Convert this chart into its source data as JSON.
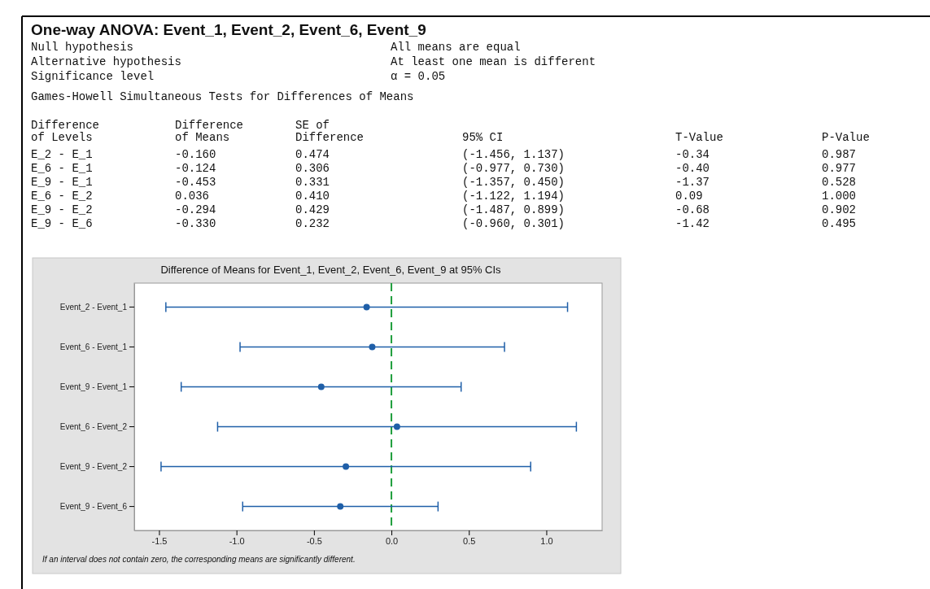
{
  "chart_data": {
    "type": "scatter",
    "orientation": "horizontal",
    "title": "Difference of Means for Event_1, Event_2, Event_6, Event_9 at 95% CIs",
    "categories": [
      "Event_2 - Event_1",
      "Event_6 - Event_1",
      "Event_9 - Event_1",
      "Event_6 - Event_2",
      "Event_9 - Event_2",
      "Event_9 - Event_6"
    ],
    "series": [
      {
        "color": "#1f5fa8",
        "values": [
          -0.16,
          -0.124,
          -0.453,
          0.036,
          -0.294,
          -0.33
        ],
        "errors": [
          [
            -1.456,
            1.137
          ],
          [
            -0.977,
            0.73
          ],
          [
            -1.357,
            0.45
          ],
          [
            -1.122,
            1.194
          ],
          [
            -1.487,
            0.899
          ],
          [
            -0.96,
            0.301
          ]
        ]
      }
    ],
    "xlim": [
      -1.66,
      1.36
    ],
    "xticks": [
      {
        "value": -1.5,
        "label": "-1.5"
      },
      {
        "value": -1.0,
        "label": "-1.0"
      },
      {
        "value": -0.5,
        "label": "-0.5"
      },
      {
        "value": 0,
        "label": "0.0"
      },
      {
        "value": 0.5,
        "label": "0.5"
      },
      {
        "value": 1.0,
        "label": "1.0"
      }
    ],
    "marker": "circle",
    "grid": false,
    "ref_lines": [
      {
        "axis": "x",
        "value": 0,
        "color": "#1e9e3c",
        "line_style": "dashed"
      }
    ],
    "annotations": [
      "One-way ANOVA: Event_1, Event_2, Event_6, Event_9",
      "Null hypothesis",
      "All means are equal",
      "Alternative hypothesis",
      "At least one mean is different",
      "Significance level",
      "α = 0.05",
      "Games-Howell Simultaneous Tests for Differences of Means",
      "Difference\nof Levels",
      "Difference\nof Means",
      "SE of\nDifference",
      "95% CI",
      "T-Value",
      "P-Value",
      "E_2 - E_1",
      "-0.160",
      "0.474",
      "(-1.456, 1.137)",
      "-0.34",
      "0.987",
      "E_6 - E_1",
      "-0.124",
      "0.306",
      "(-0.977, 0.730)",
      "-0.40",
      "0.977",
      "E_9 - E_1",
      "-0.453",
      "0.331",
      "(-1.357, 0.450)",
      "-1.37",
      "0.528",
      "E_6 - E_2",
      "0.036",
      "0.410",
      "(-1.122, 1.194)",
      "0.09",
      "1.000",
      "E_9 - E_2",
      "-0.294",
      "0.429",
      "(-1.487, 0.899)",
      "-0.68",
      "0.902",
      "E_9 - E_6",
      "-0.330",
      "0.232",
      "(-0.960, 0.301)",
      "-1.42",
      "0.495",
      "If an interval does not contain zero, the corresponding means are significantly different."
    ]
  }
}
